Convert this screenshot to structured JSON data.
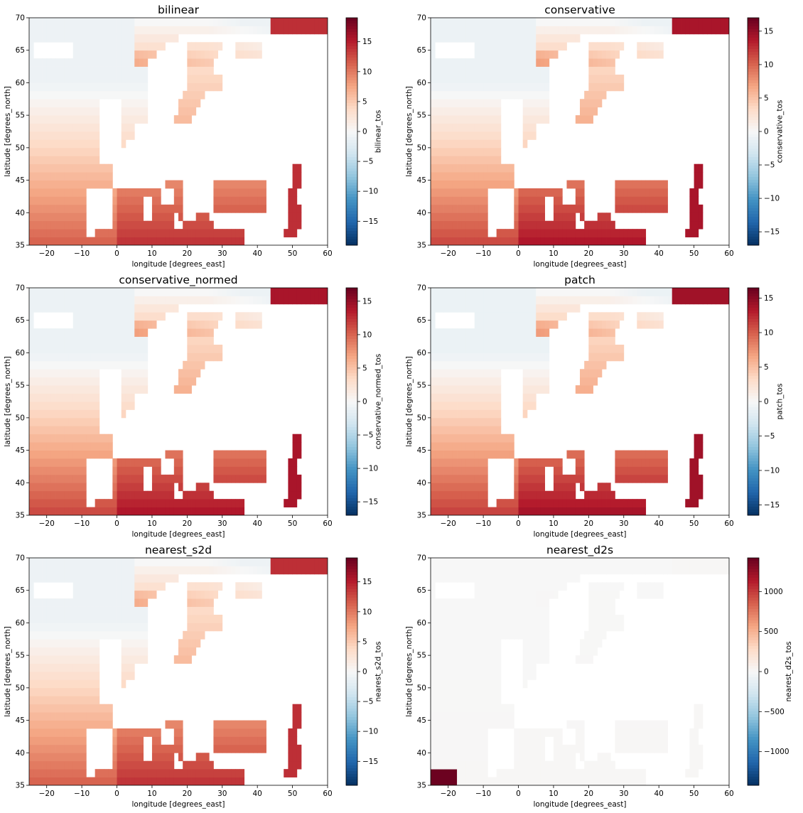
{
  "chart_data": [
    {
      "type": "heatmap",
      "title": "bilinear",
      "xlabel": "longitude [degrees_east]",
      "ylabel": "latitude [degrees_north]",
      "xlim": [
        -25,
        60
      ],
      "ylim": [
        35,
        70
      ],
      "xticks": [
        "−20",
        "−10",
        "0",
        "10",
        "20",
        "30",
        "40",
        "50",
        "60"
      ],
      "yticks": [
        "35",
        "40",
        "45",
        "50",
        "55",
        "60",
        "65",
        "70"
      ],
      "colorbar": {
        "label": "bilinear_tos",
        "vmin": -19,
        "vmax": 19,
        "ticks": [
          "15",
          "10",
          "5",
          "0",
          "−5",
          "−10",
          "−15"
        ],
        "tick_values": [
          15,
          10,
          5,
          0,
          -5,
          -10,
          -15
        ],
        "cmap": "RdBu_r"
      },
      "field_range": [
        -1,
        18
      ]
    },
    {
      "type": "heatmap",
      "title": "conservative",
      "xlabel": "longitude [degrees_east]",
      "ylabel": "latitude [degrees_north]",
      "xlim": [
        -25,
        60
      ],
      "ylim": [
        35,
        70
      ],
      "xticks": [
        "−20",
        "−10",
        "0",
        "10",
        "20",
        "30",
        "40",
        "50",
        "60"
      ],
      "yticks": [
        "35",
        "40",
        "45",
        "50",
        "55",
        "60",
        "65",
        "70"
      ],
      "colorbar": {
        "label": "conservative_tos",
        "vmin": -17,
        "vmax": 17,
        "ticks": [
          "15",
          "10",
          "5",
          "0",
          "−5",
          "−10",
          "−15"
        ],
        "tick_values": [
          15,
          10,
          5,
          0,
          -5,
          -10,
          -15
        ],
        "cmap": "RdBu_r"
      },
      "field_range": [
        -1,
        17
      ]
    },
    {
      "type": "heatmap",
      "title": "conservative_normed",
      "xlabel": "longitude [degrees_east]",
      "ylabel": "latitude [degrees_north]",
      "xlim": [
        -25,
        60
      ],
      "ylim": [
        35,
        70
      ],
      "xticks": [
        "−20",
        "−10",
        "0",
        "10",
        "20",
        "30",
        "40",
        "50",
        "60"
      ],
      "yticks": [
        "35",
        "40",
        "45",
        "50",
        "55",
        "60",
        "65",
        "70"
      ],
      "colorbar": {
        "label": "conservative_normed_tos",
        "vmin": -17,
        "vmax": 17,
        "ticks": [
          "15",
          "10",
          "5",
          "0",
          "−5",
          "−10",
          "−15"
        ],
        "tick_values": [
          15,
          10,
          5,
          0,
          -5,
          -10,
          -15
        ],
        "cmap": "RdBu_r"
      },
      "field_range": [
        -1,
        17
      ]
    },
    {
      "type": "heatmap",
      "title": "patch",
      "xlabel": "longitude [degrees_east]",
      "ylabel": "latitude [degrees_north]",
      "xlim": [
        -25,
        60
      ],
      "ylim": [
        35,
        70
      ],
      "xticks": [
        "−20",
        "−10",
        "0",
        "10",
        "20",
        "30",
        "40",
        "50",
        "60"
      ],
      "yticks": [
        "35",
        "40",
        "45",
        "50",
        "55",
        "60",
        "65",
        "70"
      ],
      "colorbar": {
        "label": "patch_tos",
        "vmin": -16.5,
        "vmax": 16.5,
        "ticks": [
          "15",
          "10",
          "5",
          "0",
          "−5",
          "−10",
          "−15"
        ],
        "tick_values": [
          15,
          10,
          5,
          0,
          -5,
          -10,
          -15
        ],
        "cmap": "RdBu_r"
      },
      "field_range": [
        -1,
        16.5
      ]
    },
    {
      "type": "heatmap",
      "title": "nearest_s2d",
      "xlabel": "longitude [degrees_east]",
      "ylabel": "latitude [degrees_north]",
      "xlim": [
        -25,
        60
      ],
      "ylim": [
        35,
        70
      ],
      "xticks": [
        "−20",
        "−10",
        "0",
        "10",
        "20",
        "30",
        "40",
        "50",
        "60"
      ],
      "yticks": [
        "35",
        "40",
        "45",
        "50",
        "55",
        "60",
        "65",
        "70"
      ],
      "colorbar": {
        "label": "nearest_s2d_tos",
        "vmin": -19,
        "vmax": 19,
        "ticks": [
          "15",
          "10",
          "5",
          "0",
          "−5",
          "−10",
          "−15"
        ],
        "tick_values": [
          15,
          10,
          5,
          0,
          -5,
          -10,
          -15
        ],
        "cmap": "RdBu_r"
      },
      "field_range": [
        -1,
        18
      ]
    },
    {
      "type": "heatmap",
      "title": "nearest_d2s",
      "xlabel": "longitude [degrees_east]",
      "ylabel": "latitude [degrees_north]",
      "xlim": [
        -25,
        60
      ],
      "ylim": [
        35,
        70
      ],
      "xticks": [
        "−20",
        "−10",
        "0",
        "10",
        "20",
        "30",
        "40",
        "50",
        "60"
      ],
      "yticks": [
        "35",
        "40",
        "45",
        "50",
        "55",
        "60",
        "65",
        "70"
      ],
      "colorbar": {
        "label": "nearest_d2s_tos",
        "vmin": -1420,
        "vmax": 1420,
        "ticks": [
          "1000",
          "500",
          "0",
          "−500",
          "−1000"
        ],
        "tick_values": [
          1000,
          500,
          0,
          -500,
          -1000
        ],
        "cmap": "RdBu_r"
      },
      "field_range": [
        -1,
        1400
      ],
      "extreme_patch": {
        "lon": [
          -25,
          -17
        ],
        "lat": [
          35,
          37
        ],
        "value": 1400
      }
    }
  ]
}
